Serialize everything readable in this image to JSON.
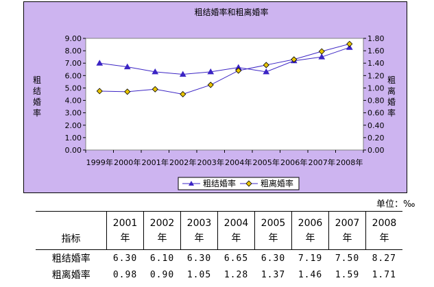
{
  "chart_data": {
    "type": "line",
    "title": "粗结婚率和粗离婚率",
    "categories": [
      "1999年",
      "2000年",
      "2001年",
      "2002年",
      "2003年",
      "2004年",
      "2005年",
      "2006年",
      "2007年",
      "2008年"
    ],
    "series": [
      {
        "name": "粗结婚率",
        "axis": "left",
        "marker": "triangle",
        "color": "#3b24c4",
        "values": [
          7.0,
          6.7,
          6.3,
          6.1,
          6.3,
          6.65,
          6.3,
          7.19,
          7.5,
          8.27
        ]
      },
      {
        "name": "粗离婚率",
        "axis": "right",
        "marker": "diamond",
        "color": "#e8c400",
        "values": [
          0.95,
          0.94,
          0.98,
          0.9,
          1.05,
          1.28,
          1.37,
          1.46,
          1.59,
          1.71
        ]
      }
    ],
    "ylabel_left": "粗结婚率",
    "ylabel_right": "粗离婚率",
    "ylim_left": [
      0,
      9
    ],
    "ylim_right": [
      0,
      1.8
    ],
    "yticks_left": [
      "0.00",
      "1.00",
      "2.00",
      "3.00",
      "4.00",
      "5.00",
      "6.00",
      "7.00",
      "8.00",
      "9.00"
    ],
    "yticks_right": [
      "0.00",
      "0.20",
      "0.40",
      "0.60",
      "0.80",
      "1.00",
      "1.20",
      "1.40",
      "1.60",
      "1.80"
    ],
    "grid": false,
    "legend_position": "bottom",
    "plot_background": "#ffffff",
    "panel_background": "#cdb4f0"
  },
  "table": {
    "unit": "单位：‰",
    "header_label": "指标",
    "years": [
      "2001",
      "2002",
      "2003",
      "2004",
      "2005",
      "2006",
      "2007",
      "2008"
    ],
    "year_suffix": "年",
    "rows": [
      {
        "label": "粗结婚率",
        "values": [
          "6.30",
          "6.10",
          "6.30",
          "6.65",
          "6.30",
          "7.19",
          "7.50",
          "8.27"
        ]
      },
      {
        "label": "粗离婚率",
        "values": [
          "0.98",
          "0.90",
          "1.05",
          "1.28",
          "1.37",
          "1.46",
          "1.59",
          "1.71"
        ]
      }
    ]
  }
}
